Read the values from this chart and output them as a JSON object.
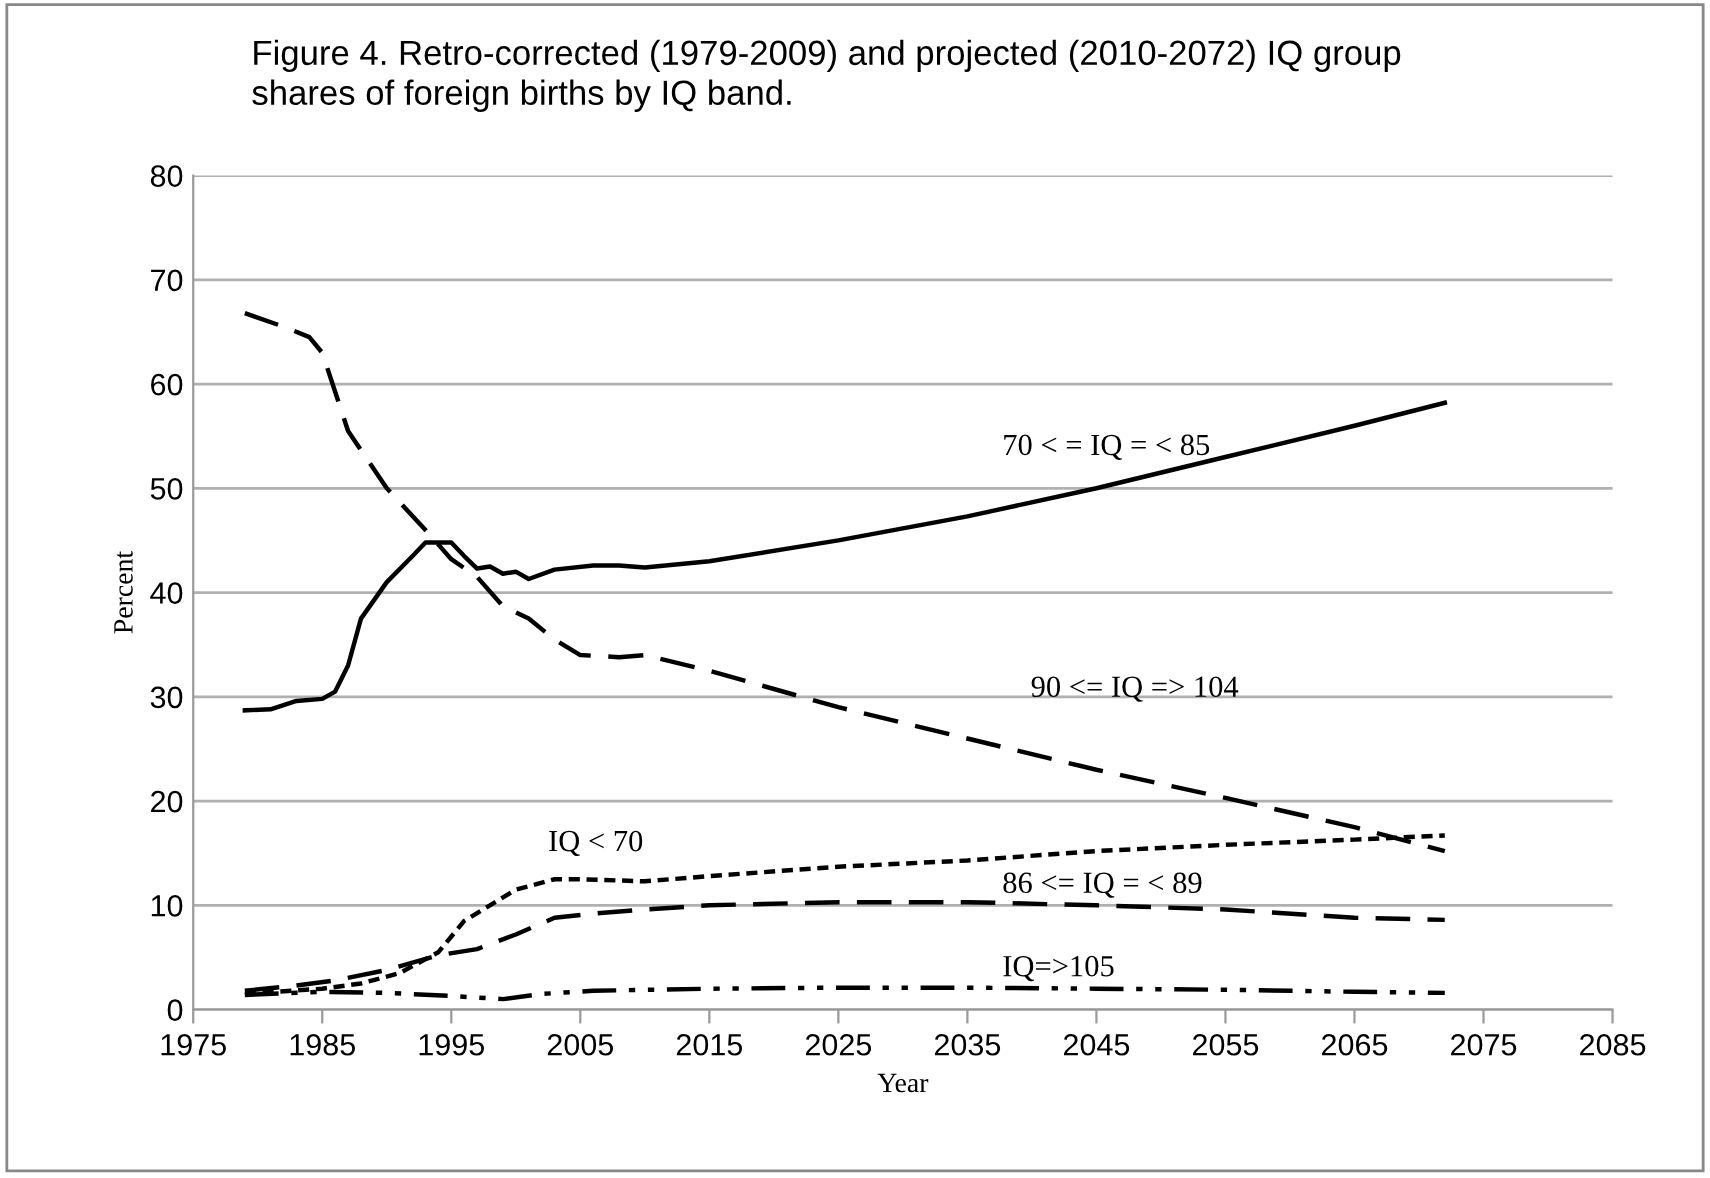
{
  "chart_data": {
    "type": "line",
    "title": "Figure 4. Retro-corrected (1979-2009) and projected (2010-2072) IQ group\nshares of foreign births by IQ band.",
    "xlabel": "Year",
    "ylabel": "Percent",
    "xlim": [
      1975,
      2085
    ],
    "xticks": [
      1975,
      1985,
      1995,
      2005,
      2015,
      2025,
      2035,
      2045,
      2055,
      2065,
      2075,
      2085
    ],
    "ylim": [
      0,
      80
    ],
    "yticks": [
      0,
      10,
      20,
      30,
      40,
      50,
      60,
      70,
      80
    ],
    "grid": "y",
    "legend": false,
    "marker": "none",
    "series": [
      {
        "name": "70 < = IQ = < 85",
        "color": "#000000",
        "line_style": "solid",
        "x": [
          1979,
          1981,
          1983,
          1985,
          1986,
          1987,
          1988,
          1990,
          1992,
          1993,
          1995,
          1996,
          1997,
          1998,
          1999,
          2000,
          2001,
          2003,
          2006,
          2008,
          2010,
          2015,
          2025,
          2035,
          2045,
          2055,
          2065,
          2072
        ],
        "values": [
          28.7,
          28.8,
          29.6,
          29.8,
          30.5,
          33,
          37.5,
          41,
          43.5,
          44.8,
          44.8,
          43.5,
          42.3,
          42.5,
          41.8,
          42,
          41.3,
          42.2,
          42.6,
          42.6,
          42.4,
          43,
          45,
          47.3,
          50,
          53,
          56,
          58.2
        ]
      },
      {
        "name": "90 <= IQ => 104",
        "color": "#000000",
        "line_style": "dashed",
        "x": [
          1979,
          1982,
          1984,
          1985,
          1987,
          1990,
          1993,
          1995,
          1997,
          1999,
          2001,
          2003,
          2005,
          2008,
          2010,
          2015,
          2025,
          2035,
          2045,
          2055,
          2065,
          2072
        ],
        "values": [
          66.8,
          65.5,
          64.5,
          63,
          55.5,
          50,
          46,
          43.2,
          41.5,
          38.7,
          37.5,
          35.5,
          34,
          33.8,
          34,
          32.5,
          29,
          26,
          23,
          20.3,
          17.5,
          15.2
        ]
      },
      {
        "name": "IQ < 70",
        "color": "#000000",
        "line_style": "dotted",
        "x": [
          1979,
          1985,
          1988,
          1991,
          1994,
          1996,
          1998,
          2000,
          2003,
          2005,
          2010,
          2015,
          2025,
          2035,
          2045,
          2055,
          2065,
          2072
        ],
        "values": [
          1.5,
          2,
          2.5,
          3.5,
          5.5,
          8.5,
          10,
          11.5,
          12.5,
          12.5,
          12.3,
          12.8,
          13.7,
          14.3,
          15.2,
          15.8,
          16.3,
          16.7
        ]
      },
      {
        "name": "86 <= IQ = < 89",
        "color": "#000000",
        "line_style": "dashed",
        "x": [
          1979,
          1983,
          1986,
          1990,
          1994,
          1997,
          2000,
          2003,
          2006,
          2010,
          2015,
          2025,
          2035,
          2045,
          2055,
          2065,
          2072
        ],
        "values": [
          1.8,
          2.3,
          2.8,
          3.8,
          5.2,
          5.8,
          7.2,
          8.8,
          9.2,
          9.6,
          10,
          10.3,
          10.3,
          10,
          9.6,
          8.8,
          8.6
        ]
      },
      {
        "name": "IQ=>105",
        "color": "#000000",
        "line_style": "dashdot",
        "x": [
          1979,
          1985,
          1990,
          1995,
          1999,
          2002,
          2006,
          2015,
          2025,
          2035,
          2045,
          2055,
          2065,
          2072
        ],
        "values": [
          1.4,
          1.7,
          1.6,
          1.3,
          1.0,
          1.5,
          1.8,
          2.0,
          2.1,
          2.1,
          2.0,
          1.9,
          1.7,
          1.6
        ]
      }
    ]
  }
}
